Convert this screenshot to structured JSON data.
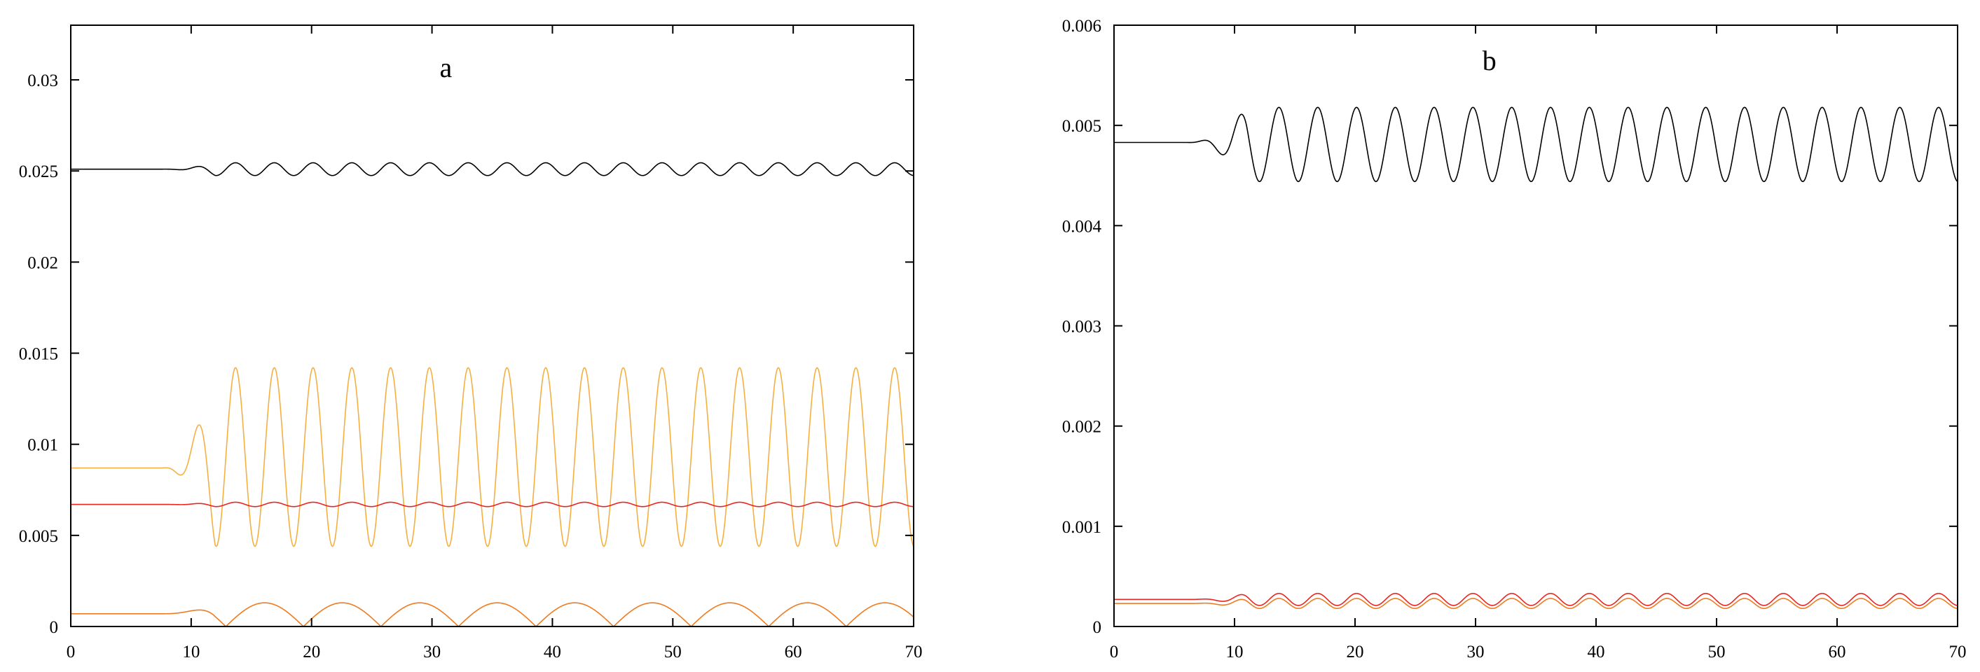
{
  "chart_data": [
    {
      "type": "line",
      "title": "a",
      "xlabel": "",
      "ylabel": "",
      "xlim": [
        0,
        70
      ],
      "ylim": [
        0,
        0.033
      ],
      "x_ticks": [
        "0",
        "10",
        "20",
        "30",
        "40",
        "50",
        "60",
        "70"
      ],
      "y_ticks": [
        "0",
        "0.005",
        "0.01",
        "0.015",
        "0.02",
        "0.025",
        "0.03"
      ],
      "grid": false,
      "legend": "none",
      "series": [
        {
          "color": "#000000",
          "baseline": 0.0251,
          "final_mean": 0.0251,
          "final_amplitude": 0.00035,
          "onset": 7.5,
          "saturation": 12,
          "period": 3.22
        },
        {
          "color": "#F5B041",
          "baseline": 0.0087,
          "final_mean": 0.0093,
          "final_amplitude": 0.0049,
          "onset": 7.5,
          "saturation": 12,
          "period": 3.22
        },
        {
          "color": "#E8261F",
          "baseline": 0.0067,
          "final_mean": 0.0067,
          "final_amplitude": 0.00012,
          "onset": 7.5,
          "saturation": 12,
          "period": 3.22
        },
        {
          "color": "#F07A1E",
          "baseline": 0.0007,
          "final_amplitude": 0.0013,
          "onset": 7.5,
          "saturation": 12,
          "period": 6.44,
          "shape": "rectified"
        }
      ]
    },
    {
      "type": "line",
      "title": "b",
      "xlabel": "",
      "ylabel": "",
      "xlim": [
        0,
        70
      ],
      "ylim": [
        0,
        0.006
      ],
      "x_ticks": [
        "0",
        "10",
        "20",
        "30",
        "40",
        "50",
        "60",
        "70"
      ],
      "y_ticks": [
        "0",
        "0.001",
        "0.002",
        "0.003",
        "0.004",
        "0.005",
        "0.006"
      ],
      "grid": false,
      "legend": "none",
      "series": [
        {
          "color": "#000000",
          "baseline": 0.00483,
          "final_mean": 0.00481,
          "final_amplitude": 0.00037,
          "onset": 6,
          "saturation": 11,
          "period": 3.22
        },
        {
          "color": "#E8261F",
          "baseline": 0.00027,
          "final_mean": 0.00027,
          "final_amplitude": 6e-05,
          "onset": 6,
          "saturation": 11,
          "period": 3.22
        },
        {
          "color": "#F07A1E",
          "baseline": 0.00023,
          "final_mean": 0.00023,
          "final_amplitude": 5e-05,
          "onset": 6,
          "saturation": 11,
          "period": 3.22
        }
      ]
    }
  ]
}
